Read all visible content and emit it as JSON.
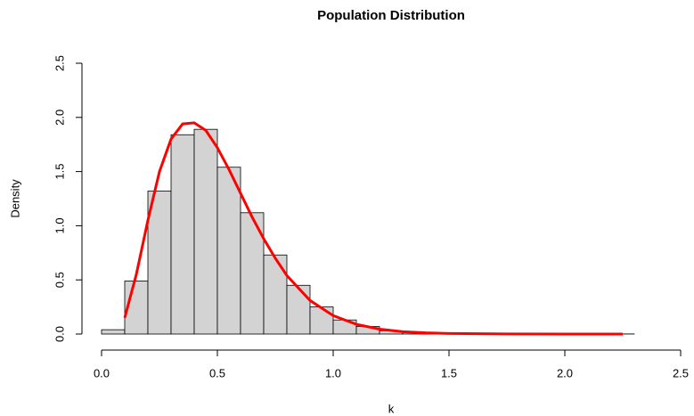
{
  "chart_data": {
    "type": "histogram",
    "title": "Population Distribution",
    "x_label": "k",
    "y_label": "Density",
    "bins": [
      0,
      0.1,
      0.2,
      0.3,
      0.4,
      0.5,
      0.6,
      0.7,
      0.8,
      0.9,
      1.0,
      1.1,
      1.2,
      1.3,
      1.4,
      1.5,
      1.6,
      1.7,
      1.8,
      1.9,
      2.0,
      2.1,
      2.2,
      2.3
    ],
    "values": [
      0.04,
      0.49,
      1.32,
      1.84,
      1.89,
      1.54,
      1.12,
      0.73,
      0.45,
      0.25,
      0.13,
      0.07,
      0.03,
      0.015,
      0.01,
      0.005,
      0.004,
      0.003,
      0.002,
      0.002,
      0.001,
      0.001,
      0.001
    ],
    "color": "#d3d3d3",
    "density_curve": {
      "color": "#ff0000",
      "x": [
        0.1,
        0.15,
        0.2,
        0.25,
        0.3,
        0.35,
        0.4,
        0.45,
        0.5,
        0.55,
        0.6,
        0.65,
        0.7,
        0.75,
        0.8,
        0.9,
        1.0,
        1.1,
        1.2,
        1.3,
        1.4,
        1.5,
        1.75,
        2.0,
        2.25
      ],
      "y": [
        0.15,
        0.55,
        1.05,
        1.5,
        1.8,
        1.94,
        1.95,
        1.88,
        1.72,
        1.52,
        1.3,
        1.08,
        0.88,
        0.7,
        0.54,
        0.31,
        0.17,
        0.09,
        0.045,
        0.022,
        0.011,
        0.005,
        0.001,
        0.0002,
        0
      ]
    },
    "xlim": [
      0,
      2.5
    ],
    "ylim": [
      0,
      2.5
    ],
    "xticks": [
      {
        "value": 0,
        "label": "0.0"
      },
      0.5,
      {
        "value": 1,
        "label": "1.0"
      },
      1.5,
      {
        "value": 2,
        "label": "2.0"
      },
      2.5
    ],
    "yticks": [
      {
        "value": 0,
        "label": "0.0"
      },
      0.5,
      {
        "value": 1,
        "label": "1.0"
      },
      1.5,
      {
        "value": 2,
        "label": "2.0"
      },
      2.5
    ]
  }
}
